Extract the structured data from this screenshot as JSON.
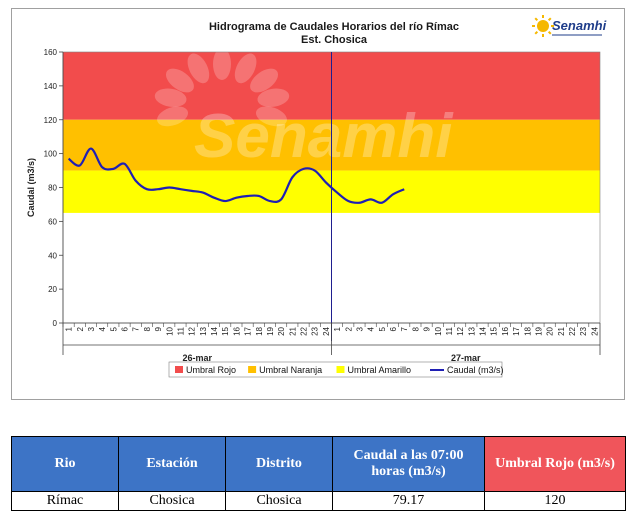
{
  "chart_data": {
    "type": "line",
    "title": "Hidrograma de Caudales Horarios del río Rímac",
    "subtitle": "Est. Chosica",
    "ylabel": "Caudal  (m3/s)",
    "ylim": [
      0,
      160
    ],
    "yticks": [
      0,
      20,
      40,
      60,
      80,
      100,
      120,
      140,
      160
    ],
    "x_hour_labels": [
      "1",
      "2",
      "3",
      "4",
      "5",
      "6",
      "7",
      "8",
      "9",
      "10",
      "11",
      "12",
      "13",
      "14",
      "15",
      "16",
      "17",
      "18",
      "19",
      "20",
      "21",
      "22",
      "23",
      "24",
      "1",
      "2",
      "3",
      "4",
      "5",
      "6",
      "7",
      "8",
      "9",
      "10",
      "11",
      "12",
      "13",
      "14",
      "15",
      "16",
      "17",
      "18",
      "19",
      "20",
      "21",
      "22",
      "23",
      "24"
    ],
    "days": [
      "26-mar",
      "27-mar"
    ],
    "thresholds": [
      {
        "name": "Umbral Rojo",
        "from": 120,
        "to": 160,
        "color": "#f24c4c"
      },
      {
        "name": "Umbral Naranja",
        "from": 90,
        "to": 120,
        "color": "#ffc000"
      },
      {
        "name": "Umbral Amarillo",
        "from": 65,
        "to": 90,
        "color": "#ffff00"
      }
    ],
    "series": [
      {
        "name": "Caudal (m3/s)",
        "color": "#1f1fb4",
        "values": [
          97,
          93,
          103,
          92,
          91,
          94,
          84,
          79,
          79,
          80,
          79,
          78,
          77,
          74,
          72,
          74,
          75,
          75,
          72,
          73,
          86,
          91,
          90,
          83,
          77,
          72,
          71,
          73,
          71,
          76,
          79
        ]
      }
    ],
    "grid": false,
    "legend_position": "bottom"
  },
  "watermark": "Senamhi",
  "logo": {
    "text": "Senamhi"
  },
  "table": {
    "headers": [
      "Rio",
      "Estación",
      "Distrito",
      "Caudal a las 07:00 horas (m3/s)",
      "Umbral Rojo (m3/s)"
    ],
    "row": [
      "Rímac",
      "Chosica",
      "Chosica",
      "79.17",
      "120"
    ]
  }
}
